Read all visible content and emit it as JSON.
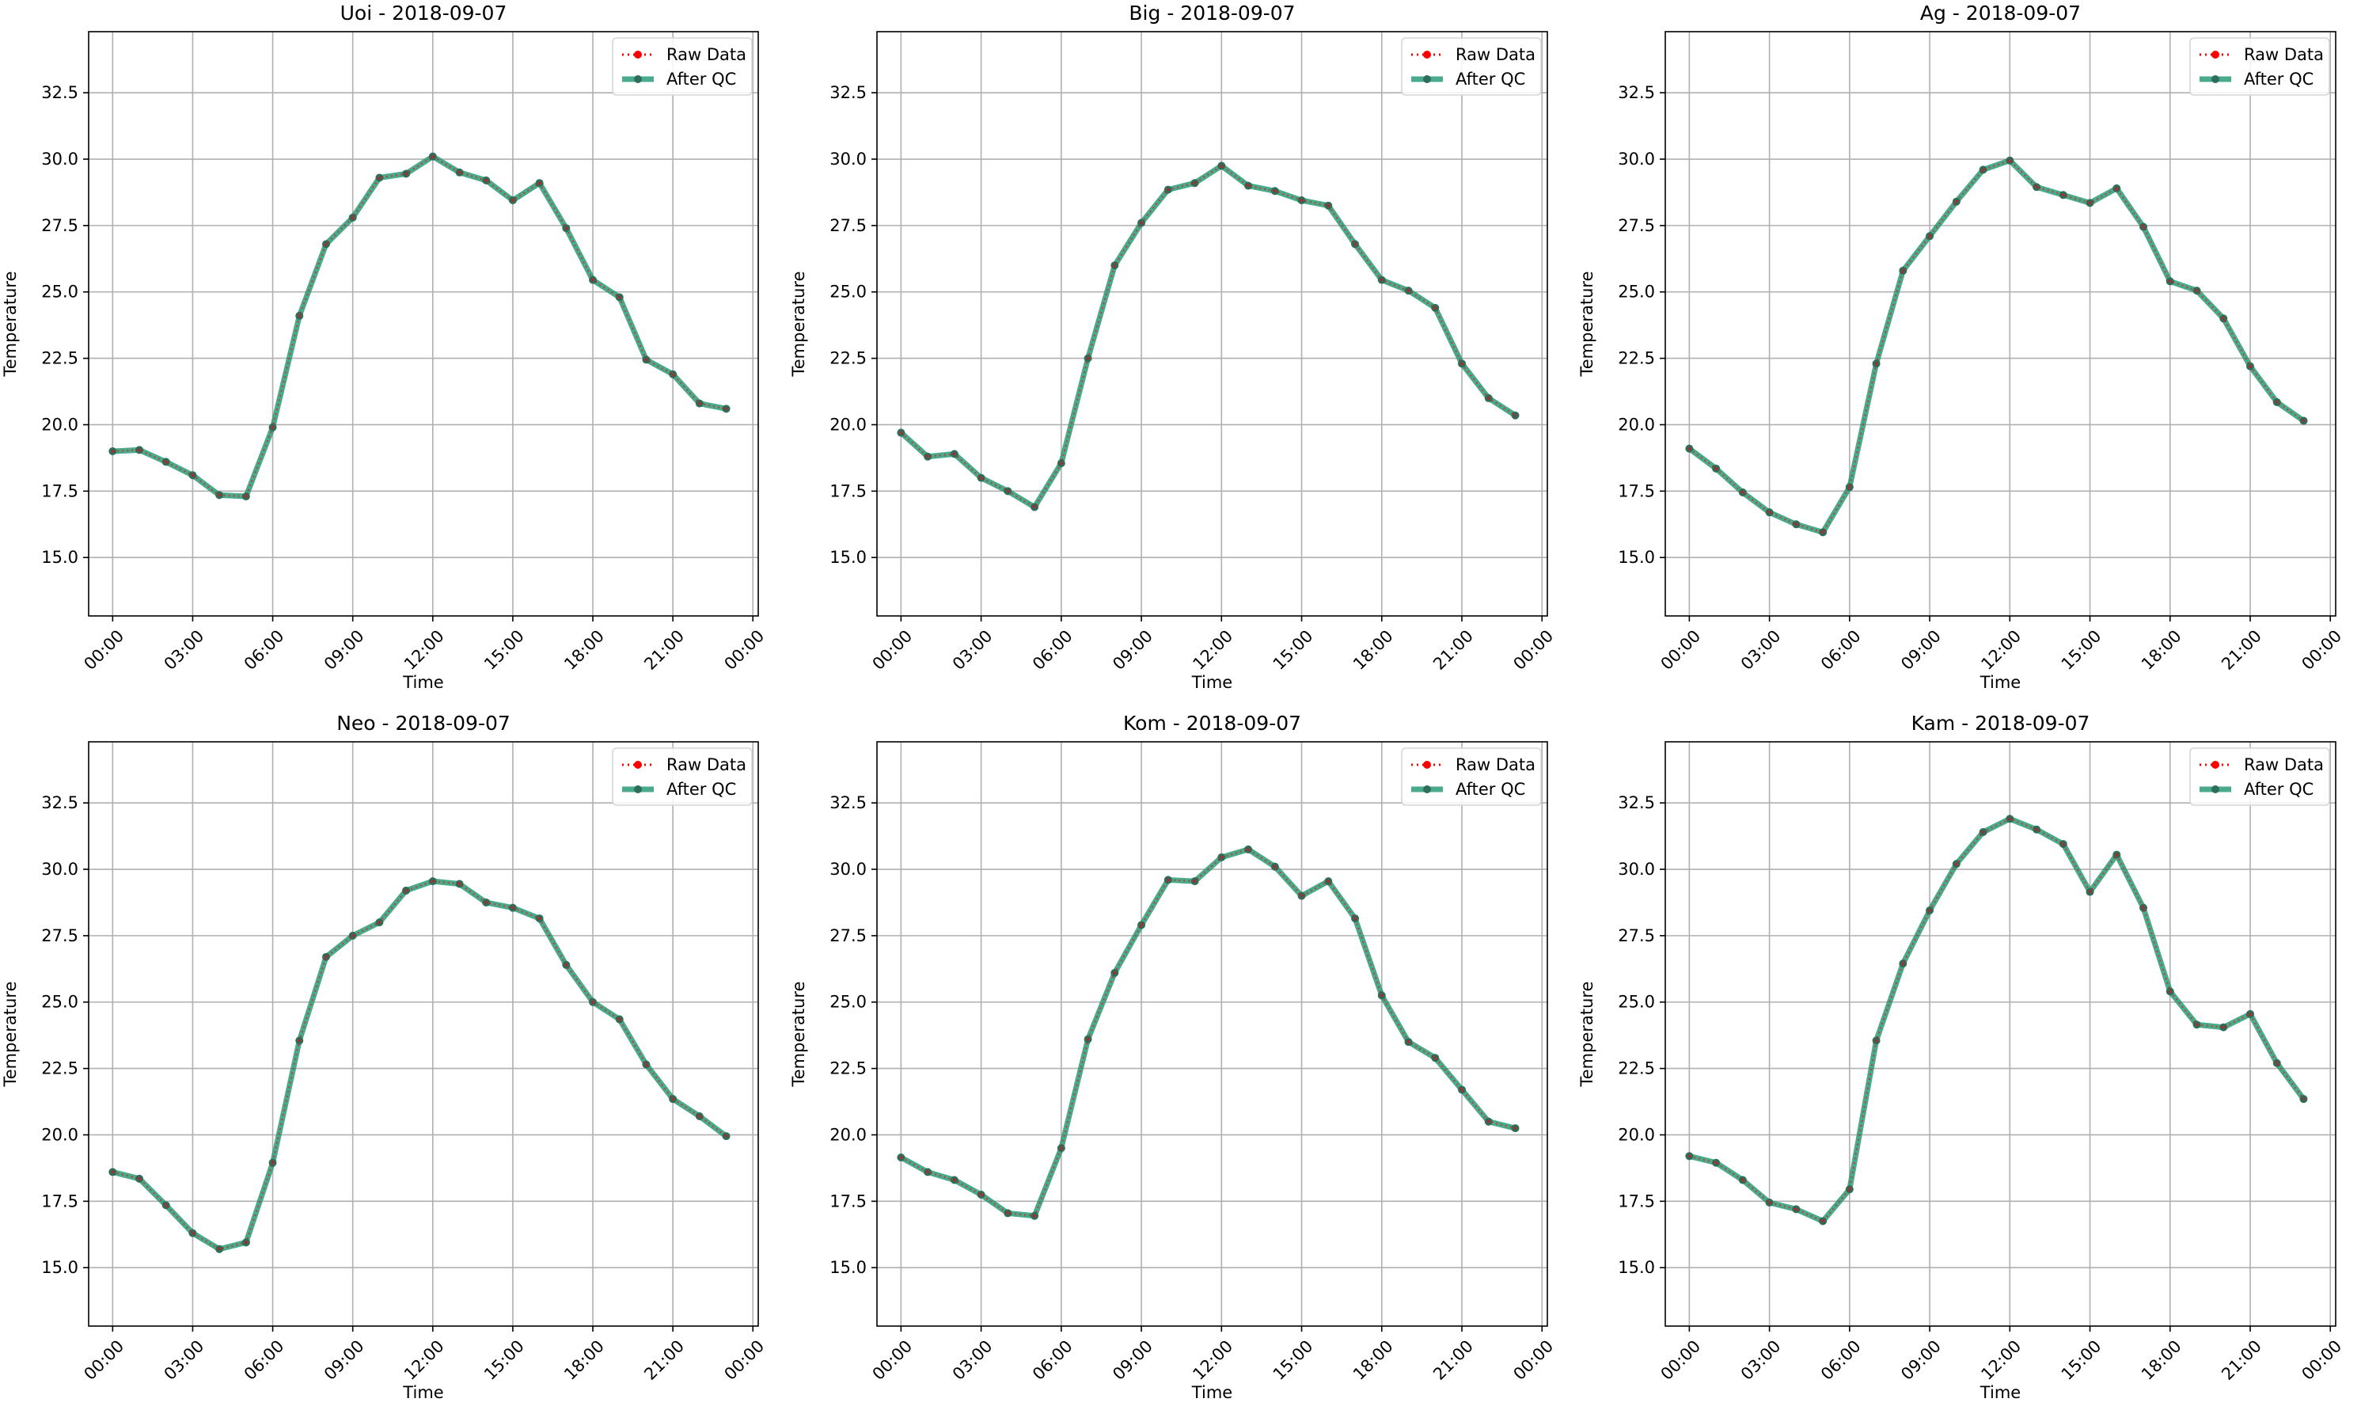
{
  "figure": {
    "background": "#ffffff"
  },
  "colors": {
    "raw": "#ff0000",
    "qc": "#2a9b78",
    "qc_marker": "#2d6e5c",
    "grid": "#b0b0b0"
  },
  "legend": {
    "raw_label": "Raw Data",
    "qc_label": "After QC",
    "placement": "upper right"
  },
  "chart_data": [
    {
      "type": "line",
      "title": "Uoi - 2018-09-07",
      "xlabel": "Time",
      "ylabel": "Temperature",
      "x": [
        0,
        1,
        2,
        3,
        4,
        5,
        6,
        7,
        8,
        9,
        10,
        11,
        12,
        13,
        14,
        15,
        16,
        17,
        18,
        19,
        20,
        21,
        22,
        23
      ],
      "xtick_labels": [
        "00:00",
        "03:00",
        "06:00",
        "09:00",
        "12:00",
        "15:00",
        "18:00",
        "21:00",
        "00:00"
      ],
      "ytick_labels": [
        "15.0",
        "17.5",
        "20.0",
        "22.5",
        "25.0",
        "27.5",
        "30.0",
        "32.5"
      ],
      "ylim": [
        12.8,
        34.8
      ],
      "xlim": [
        -0.9,
        24.2
      ],
      "grid": true,
      "series": [
        {
          "name": "Raw Data",
          "values": [
            19.0,
            19.05,
            18.6,
            18.1,
            17.35,
            17.3,
            19.9,
            24.1,
            26.8,
            27.8,
            29.3,
            29.45,
            30.1,
            29.5,
            29.2,
            28.45,
            29.1,
            27.4,
            25.45,
            24.8,
            22.45,
            21.9,
            20.8,
            20.6
          ]
        },
        {
          "name": "After QC",
          "values": [
            19.0,
            19.05,
            18.6,
            18.1,
            17.35,
            17.3,
            19.9,
            24.1,
            26.8,
            27.8,
            29.3,
            29.45,
            30.1,
            29.5,
            29.2,
            28.45,
            29.1,
            27.4,
            25.45,
            24.8,
            22.45,
            21.9,
            20.8,
            20.6
          ]
        }
      ]
    },
    {
      "type": "line",
      "title": "Big - 2018-09-07",
      "xlabel": "Time",
      "ylabel": "Temperature",
      "x": [
        0,
        1,
        2,
        3,
        4,
        5,
        6,
        7,
        8,
        9,
        10,
        11,
        12,
        13,
        14,
        15,
        16,
        17,
        18,
        19,
        20,
        21,
        22,
        23
      ],
      "xtick_labels": [
        "00:00",
        "03:00",
        "06:00",
        "09:00",
        "12:00",
        "15:00",
        "18:00",
        "21:00",
        "00:00"
      ],
      "ytick_labels": [
        "15.0",
        "17.5",
        "20.0",
        "22.5",
        "25.0",
        "27.5",
        "30.0",
        "32.5"
      ],
      "ylim": [
        12.8,
        34.8
      ],
      "xlim": [
        -0.9,
        24.2
      ],
      "grid": true,
      "series": [
        {
          "name": "Raw Data",
          "values": [
            19.7,
            18.8,
            18.9,
            18.0,
            17.5,
            16.9,
            18.55,
            22.5,
            26.0,
            27.6,
            28.85,
            29.1,
            29.75,
            29.0,
            28.8,
            28.45,
            28.25,
            26.8,
            25.45,
            25.05,
            24.4,
            22.3,
            21.0,
            20.35
          ]
        },
        {
          "name": "After QC",
          "values": [
            19.7,
            18.8,
            18.9,
            18.0,
            17.5,
            16.9,
            18.55,
            22.5,
            26.0,
            27.6,
            28.85,
            29.1,
            29.75,
            29.0,
            28.8,
            28.45,
            28.25,
            26.8,
            25.45,
            25.05,
            24.4,
            22.3,
            21.0,
            20.35
          ]
        }
      ]
    },
    {
      "type": "line",
      "title": "Ag - 2018-09-07",
      "xlabel": "Time",
      "ylabel": "Temperature",
      "x": [
        0,
        1,
        2,
        3,
        4,
        5,
        6,
        7,
        8,
        9,
        10,
        11,
        12,
        13,
        14,
        15,
        16,
        17,
        18,
        19,
        20,
        21,
        22,
        23
      ],
      "xtick_labels": [
        "00:00",
        "03:00",
        "06:00",
        "09:00",
        "12:00",
        "15:00",
        "18:00",
        "21:00",
        "00:00"
      ],
      "ytick_labels": [
        "15.0",
        "17.5",
        "20.0",
        "22.5",
        "25.0",
        "27.5",
        "30.0",
        "32.5"
      ],
      "ylim": [
        12.8,
        34.8
      ],
      "xlim": [
        -0.9,
        24.2
      ],
      "grid": true,
      "series": [
        {
          "name": "Raw Data",
          "values": [
            19.1,
            18.35,
            17.45,
            16.7,
            16.25,
            15.95,
            17.65,
            22.3,
            25.8,
            27.1,
            28.4,
            29.6,
            29.95,
            28.95,
            28.65,
            28.35,
            28.9,
            27.45,
            25.4,
            25.05,
            24.0,
            22.2,
            20.85,
            20.15
          ]
        },
        {
          "name": "After QC",
          "values": [
            19.1,
            18.35,
            17.45,
            16.7,
            16.25,
            15.95,
            17.65,
            22.3,
            25.8,
            27.1,
            28.4,
            29.6,
            29.95,
            28.95,
            28.65,
            28.35,
            28.9,
            27.45,
            25.4,
            25.05,
            24.0,
            22.2,
            20.85,
            20.15
          ]
        }
      ]
    },
    {
      "type": "line",
      "title": "Neo - 2018-09-07",
      "xlabel": "Time",
      "ylabel": "Temperature",
      "x": [
        0,
        1,
        2,
        3,
        4,
        5,
        6,
        7,
        8,
        9,
        10,
        11,
        12,
        13,
        14,
        15,
        16,
        17,
        18,
        19,
        20,
        21,
        22,
        23
      ],
      "xtick_labels": [
        "00:00",
        "03:00",
        "06:00",
        "09:00",
        "12:00",
        "15:00",
        "18:00",
        "21:00",
        "00:00"
      ],
      "ytick_labels": [
        "15.0",
        "17.5",
        "20.0",
        "22.5",
        "25.0",
        "27.5",
        "30.0",
        "32.5"
      ],
      "ylim": [
        12.8,
        34.8
      ],
      "xlim": [
        -0.9,
        24.2
      ],
      "grid": true,
      "series": [
        {
          "name": "Raw Data",
          "values": [
            18.6,
            18.35,
            17.35,
            16.3,
            15.7,
            15.95,
            18.95,
            23.55,
            26.7,
            27.5,
            28.0,
            29.2,
            29.55,
            29.45,
            28.75,
            28.55,
            28.15,
            26.4,
            25.0,
            24.35,
            22.65,
            21.35,
            20.7,
            19.95
          ]
        },
        {
          "name": "After QC",
          "values": [
            18.6,
            18.35,
            17.35,
            16.3,
            15.7,
            15.95,
            18.95,
            23.55,
            26.7,
            27.5,
            28.0,
            29.2,
            29.55,
            29.45,
            28.75,
            28.55,
            28.15,
            26.4,
            25.0,
            24.35,
            22.65,
            21.35,
            20.7,
            19.95
          ]
        }
      ]
    },
    {
      "type": "line",
      "title": "Kom - 2018-09-07",
      "xlabel": "Time",
      "ylabel": "Temperature",
      "x": [
        0,
        1,
        2,
        3,
        4,
        5,
        6,
        7,
        8,
        9,
        10,
        11,
        12,
        13,
        14,
        15,
        16,
        17,
        18,
        19,
        20,
        21,
        22,
        23
      ],
      "xtick_labels": [
        "00:00",
        "03:00",
        "06:00",
        "09:00",
        "12:00",
        "15:00",
        "18:00",
        "21:00",
        "00:00"
      ],
      "ytick_labels": [
        "15.0",
        "17.5",
        "20.0",
        "22.5",
        "25.0",
        "27.5",
        "30.0",
        "32.5"
      ],
      "ylim": [
        12.8,
        34.8
      ],
      "xlim": [
        -0.9,
        24.2
      ],
      "grid": true,
      "series": [
        {
          "name": "Raw Data",
          "values": [
            19.15,
            18.6,
            18.3,
            17.75,
            17.05,
            16.95,
            19.5,
            23.6,
            26.1,
            27.9,
            29.6,
            29.55,
            30.45,
            30.75,
            30.1,
            29.0,
            29.55,
            28.15,
            25.25,
            23.5,
            22.9,
            21.7,
            20.5,
            20.25
          ]
        },
        {
          "name": "After QC",
          "values": [
            19.15,
            18.6,
            18.3,
            17.75,
            17.05,
            16.95,
            19.5,
            23.6,
            26.1,
            27.9,
            29.6,
            29.55,
            30.45,
            30.75,
            30.1,
            29.0,
            29.55,
            28.15,
            25.25,
            23.5,
            22.9,
            21.7,
            20.5,
            20.25
          ]
        }
      ]
    },
    {
      "type": "line",
      "title": "Kam - 2018-09-07",
      "xlabel": "Time",
      "ylabel": "Temperature",
      "x": [
        0,
        1,
        2,
        3,
        4,
        5,
        6,
        7,
        8,
        9,
        10,
        11,
        12,
        13,
        14,
        15,
        16,
        17,
        18,
        19,
        20,
        21,
        22,
        23
      ],
      "xtick_labels": [
        "00:00",
        "03:00",
        "06:00",
        "09:00",
        "12:00",
        "15:00",
        "18:00",
        "21:00",
        "00:00"
      ],
      "ytick_labels": [
        "15.0",
        "17.5",
        "20.0",
        "22.5",
        "25.0",
        "27.5",
        "30.0",
        "32.5"
      ],
      "ylim": [
        12.8,
        34.8
      ],
      "xlim": [
        -0.9,
        24.2
      ],
      "grid": true,
      "series": [
        {
          "name": "Raw Data",
          "values": [
            19.2,
            18.95,
            18.3,
            17.45,
            17.2,
            16.75,
            17.95,
            23.55,
            26.45,
            28.45,
            30.2,
            31.4,
            31.9,
            31.5,
            30.95,
            29.15,
            30.55,
            28.55,
            25.4,
            24.15,
            24.05,
            24.55,
            22.7,
            21.35
          ]
        },
        {
          "name": "After QC",
          "values": [
            19.2,
            18.95,
            18.3,
            17.45,
            17.2,
            16.75,
            17.95,
            23.55,
            26.45,
            28.45,
            30.2,
            31.4,
            31.9,
            31.5,
            30.95,
            29.15,
            30.55,
            28.55,
            25.4,
            24.15,
            24.05,
            24.55,
            22.7,
            21.35
          ]
        }
      ]
    }
  ]
}
